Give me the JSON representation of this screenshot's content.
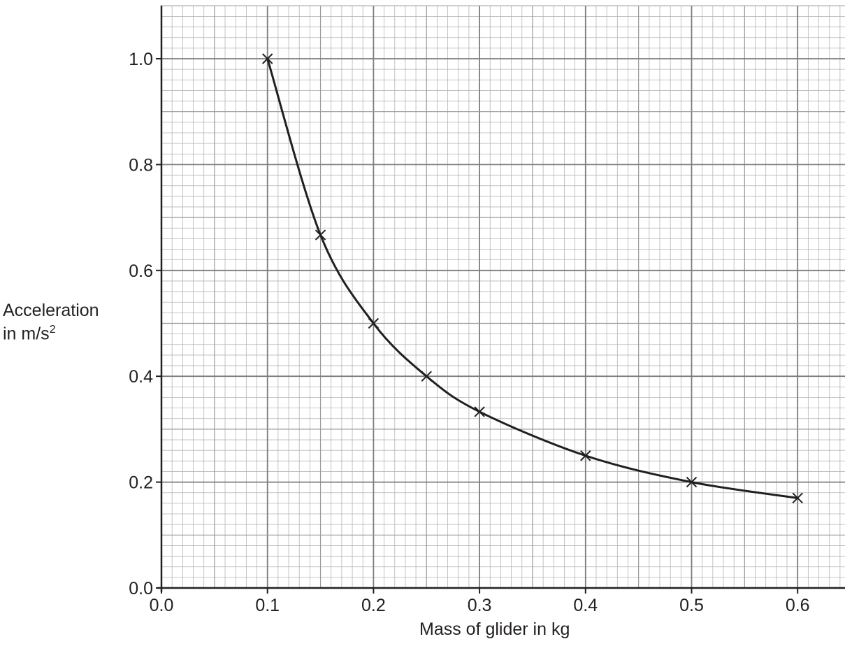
{
  "chart_data": {
    "type": "scatter",
    "xlabel": "Mass of glider in kg",
    "ylabel_line1": "Acceleration",
    "ylabel_line2": "in m/s",
    "ylabel_sup": "2",
    "xlim": [
      0,
      0.65
    ],
    "ylim": [
      0,
      1.1
    ],
    "x_ticks": [
      "0.0",
      "0.1",
      "0.2",
      "0.3",
      "0.4",
      "0.5",
      "0.6"
    ],
    "y_ticks": [
      "0.0",
      "0.2",
      "0.4",
      "0.6",
      "0.8",
      "1.0"
    ],
    "grid": true,
    "marker": "x",
    "best_fit_curve": "smooth curve through points",
    "series": [
      {
        "x": [
          0.1,
          0.15,
          0.2,
          0.25,
          0.3,
          0.4,
          0.5,
          0.6
        ],
        "y": [
          1.0,
          0.667,
          0.5,
          0.4,
          0.333,
          0.25,
          0.2,
          0.17
        ]
      }
    ],
    "colors": {
      "ink": "#231f20",
      "grid_major": "#8a8a8a",
      "grid_minor": "#b5b5b5"
    }
  }
}
